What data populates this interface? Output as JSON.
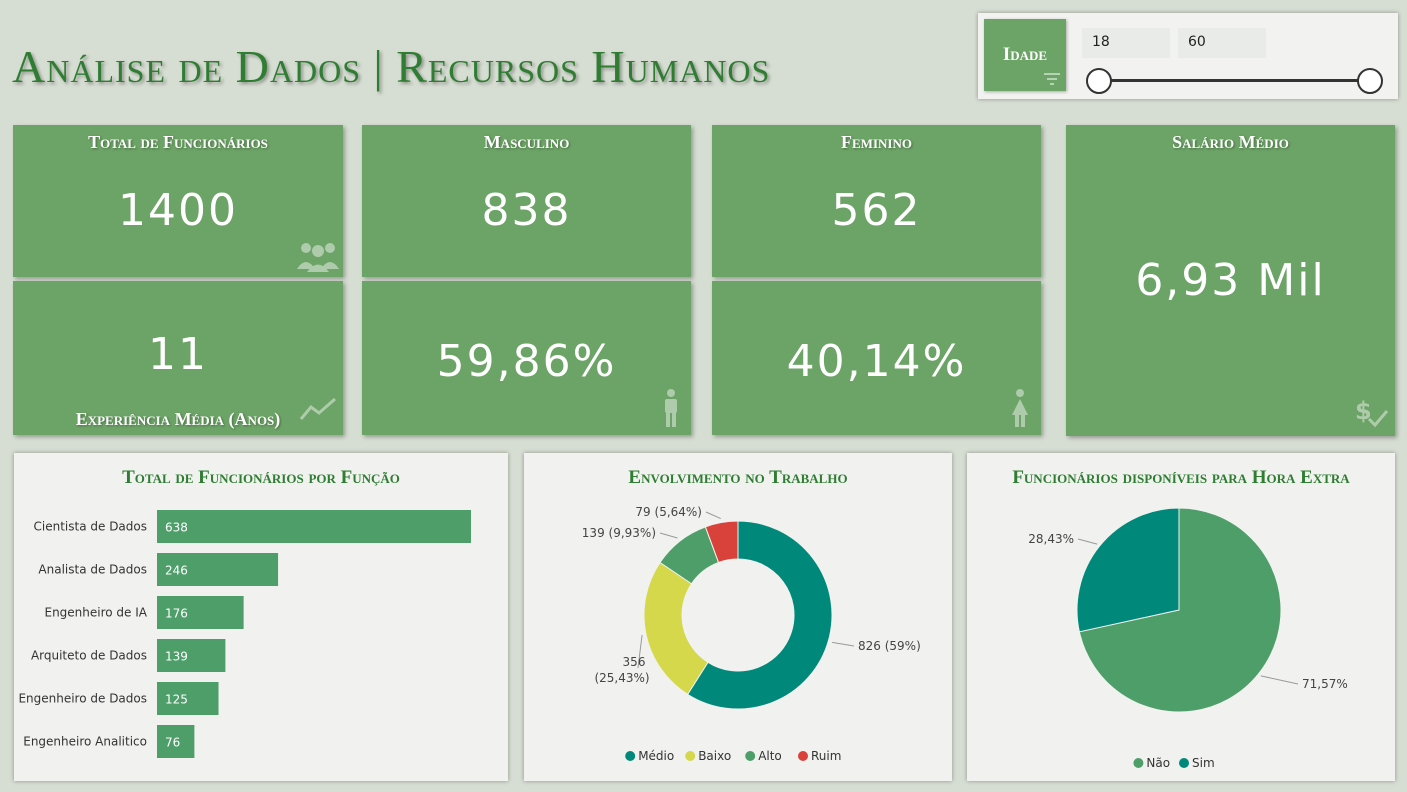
{
  "title": "Análise de Dados | Recursos Humanos",
  "slicer": {
    "label": "Idade",
    "min_value": "18",
    "max_value": "60"
  },
  "kpis": {
    "total_label": "Total de Funcionários",
    "total_value": "1400",
    "experiencia_value": "11",
    "experiencia_label": "Experiência Média (Anos)",
    "masculino_label": "Masculino",
    "masculino_value": "838",
    "masculino_pct": "59,86%",
    "feminino_label": "Feminino",
    "feminino_value": "562",
    "feminino_pct": "40,14%",
    "salario_label": "Salário Médio",
    "salario_value": "6,93 Mil"
  },
  "colors": {
    "card": "#6ca366",
    "title": "#2e7d32",
    "bar": "#4e9e6a",
    "medio": "#00897b",
    "baixo": "#d4d84a",
    "alto": "#4e9e6a",
    "ruim": "#d9423b",
    "nao": "#4e9e6a",
    "sim": "#00897b"
  },
  "chart_data": [
    {
      "type": "bar",
      "title": "Total de Funcionários por Função",
      "orientation": "horizontal",
      "categories": [
        "Cientista de Dados",
        "Analista de Dados",
        "Engenheiro de IA",
        "Arquiteto de Dados",
        "Engenheiro de Dados",
        "Engenheiro Analitico"
      ],
      "values": [
        638,
        246,
        176,
        139,
        125,
        76
      ],
      "value_labels": [
        "638",
        "246",
        "176",
        "139",
        "125",
        "76"
      ]
    },
    {
      "type": "pie",
      "donut": true,
      "title": "Envolvimento no Trabalho",
      "labels": [
        "Médio",
        "Baixo",
        "Alto",
        "Ruim"
      ],
      "values": [
        826,
        356,
        139,
        79
      ],
      "data_labels": [
        "826 (59%)",
        "356 (25,43%)",
        "139 (9,93%)",
        "79 (5,64%)"
      ],
      "legend_position": "bottom"
    },
    {
      "type": "pie",
      "title": "Funcionários disponíveis para Hora Extra",
      "labels": [
        "Não",
        "Sim"
      ],
      "values": [
        71.57,
        28.43
      ],
      "data_labels": [
        "71,57%",
        "28,43%"
      ],
      "legend_position": "bottom"
    }
  ]
}
